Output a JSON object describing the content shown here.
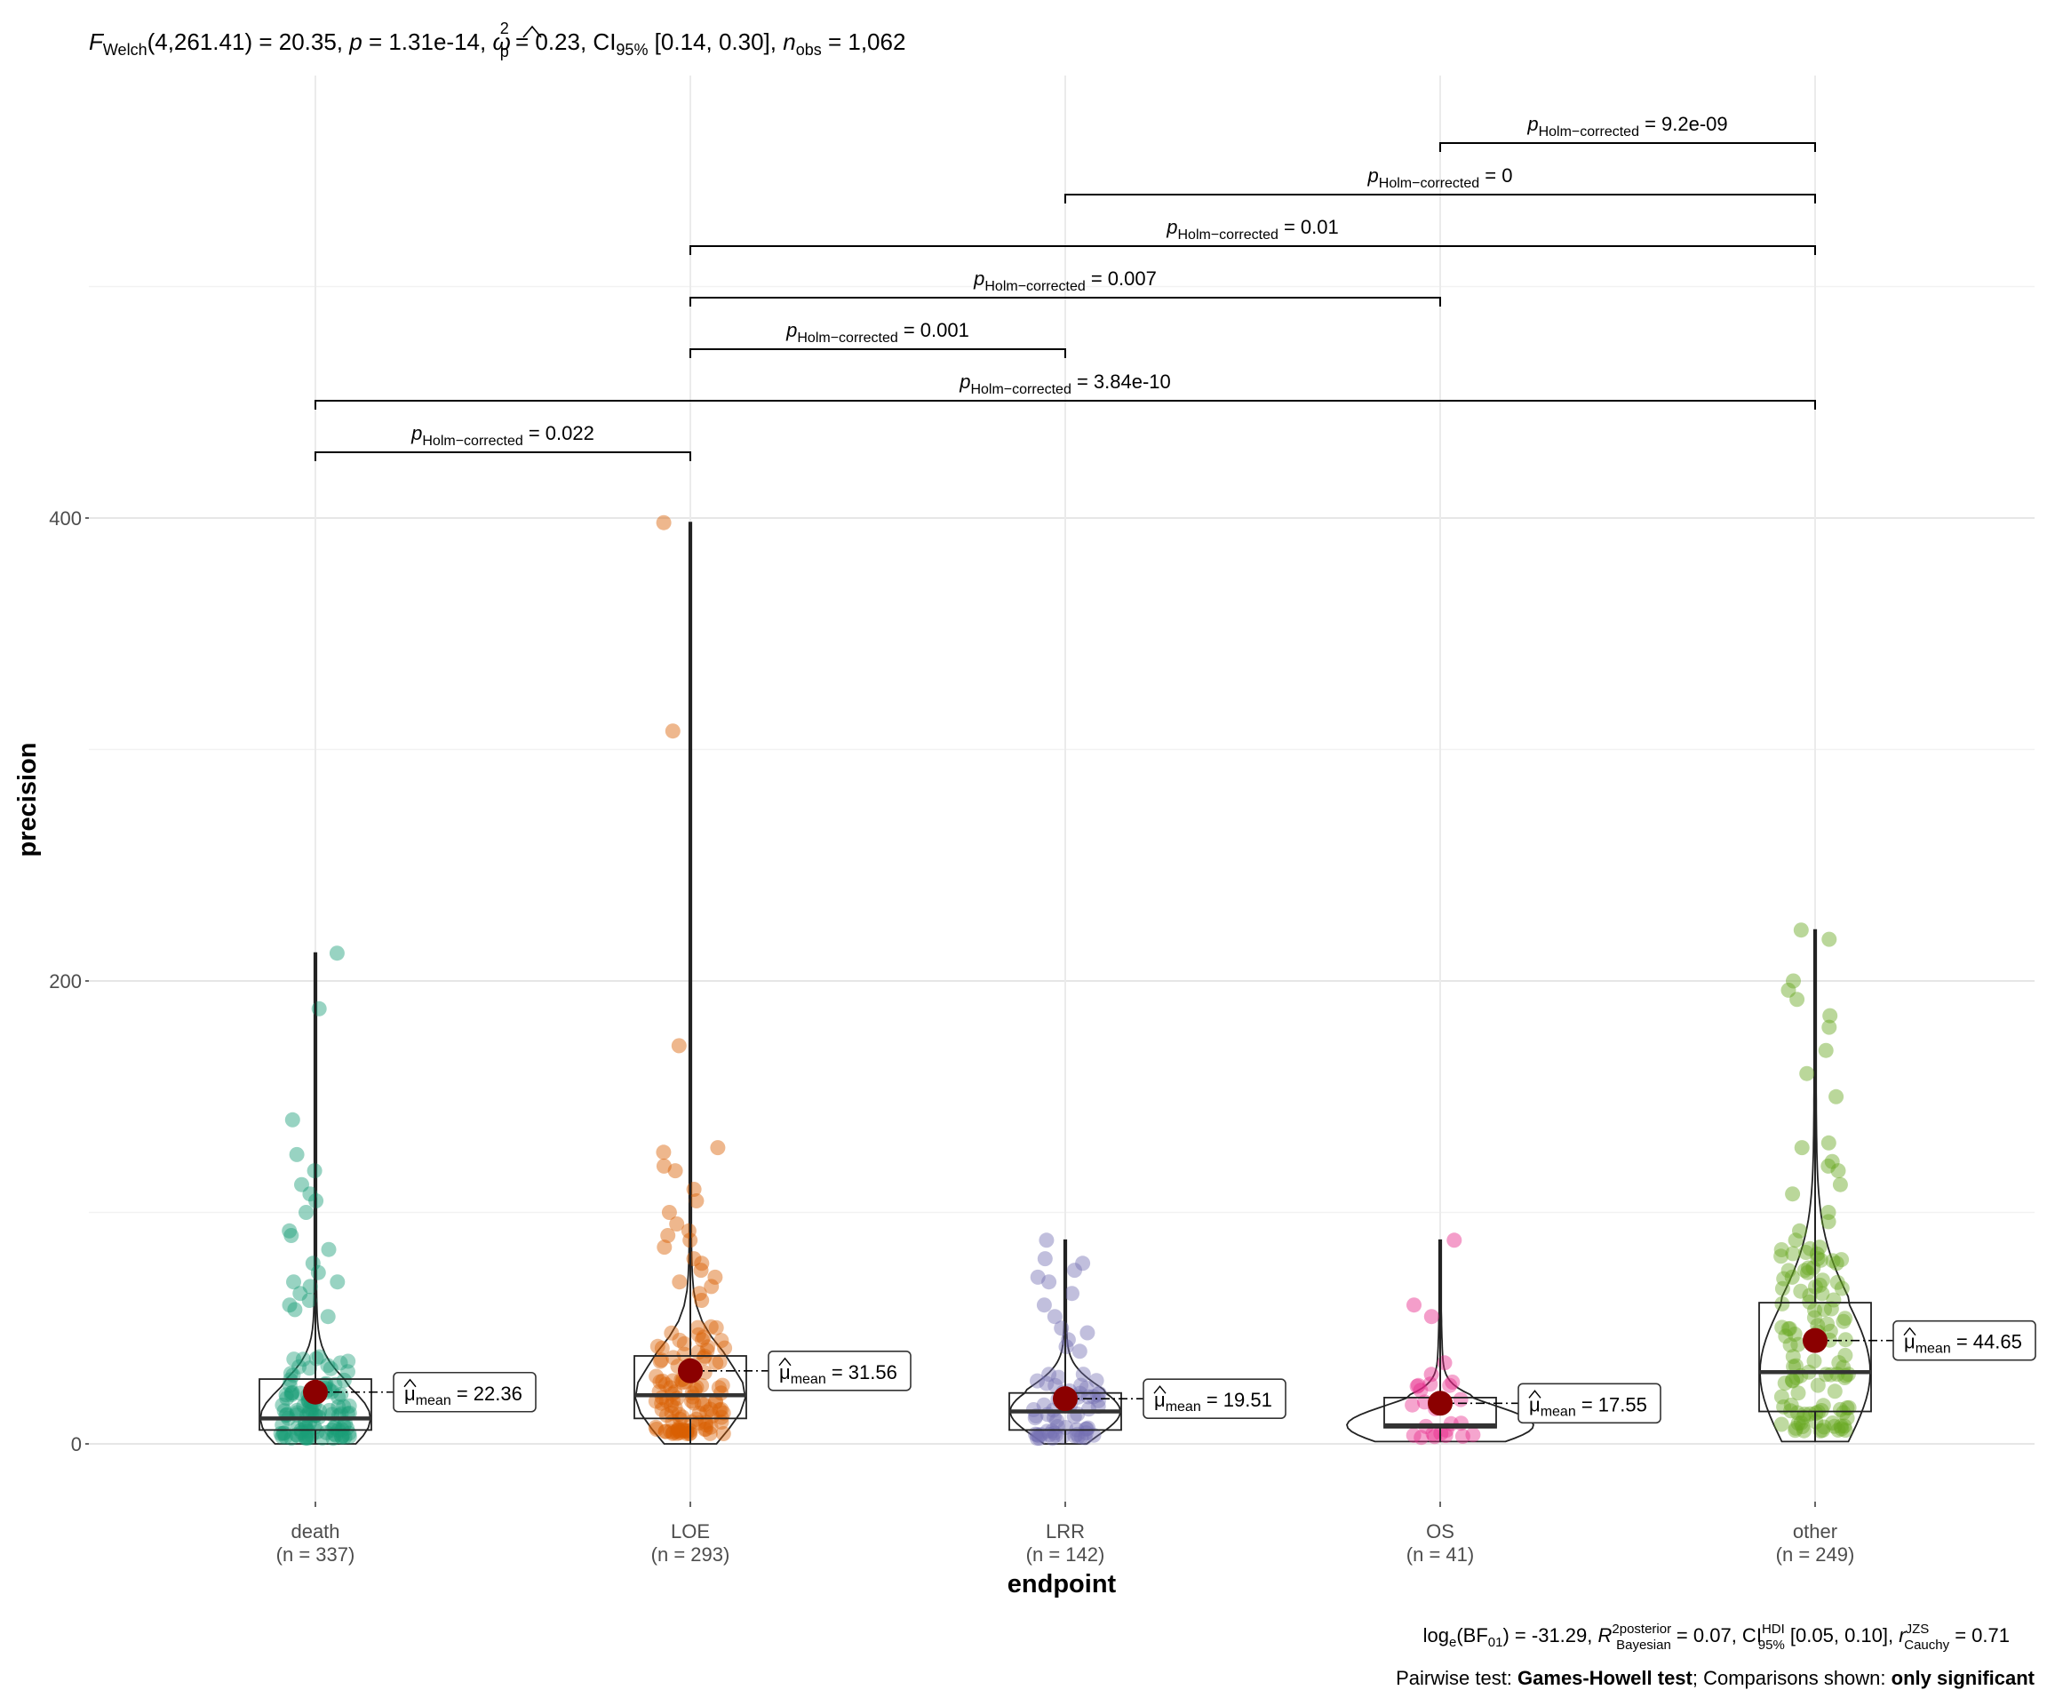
{
  "chart_data": {
    "type": "violin-box-scatter",
    "title": {
      "stat_name": "F",
      "stat_sub": "Welch",
      "df": "(4,261.41) = 20.35, ",
      "p_label": "p",
      "p_value": " = 1.31e-14, ",
      "omega_label": "ω",
      "omega_sub": "p",
      "omega_sup": "2",
      "omega_value": " = 0.23, CI",
      "ci_sub": "95%",
      "ci_value": " [0.14, 0.30], ",
      "n_label": "n",
      "n_sub": "obs",
      "n_value": " = 1,062"
    },
    "xlabel": "endpoint",
    "ylabel": "precision",
    "ylim": [
      -30,
      600
    ],
    "y_ticks": [
      0,
      200,
      400
    ],
    "y_tick_labels": [
      "0",
      "200",
      "400"
    ],
    "grid": true,
    "categories": [
      {
        "name": "death",
        "n_label": "(n = 337)",
        "color": "#1B9E77",
        "mean": 22.36,
        "mean_label": "22.36",
        "q1": 6,
        "median": 11,
        "q3": 28,
        "whisker_low": 0,
        "whisker_high": 212,
        "outliers": [
          212,
          188,
          140,
          125,
          118,
          112,
          108,
          105,
          100,
          92,
          90,
          84,
          78,
          74,
          70,
          70,
          68,
          65,
          62,
          60,
          58,
          55
        ]
      },
      {
        "name": "LOE",
        "n_label": "(n = 293)",
        "color": "#D95F02",
        "mean": 31.56,
        "mean_label": "31.56",
        "q1": 11,
        "median": 21,
        "q3": 38,
        "whisker_low": 0,
        "whisker_high": 398,
        "outliers": [
          398,
          308,
          172,
          128,
          126,
          120,
          118,
          110,
          105,
          100,
          95,
          92,
          90,
          88,
          85,
          80,
          78,
          75,
          72,
          70,
          68,
          65,
          62
        ]
      },
      {
        "name": "LRR",
        "n_label": "(n = 142)",
        "color": "#7570B3",
        "mean": 19.51,
        "mean_label": "19.51",
        "q1": 6,
        "median": 14,
        "q3": 22,
        "whisker_low": 0,
        "whisker_high": 88,
        "outliers": [
          88,
          80,
          78,
          75,
          72,
          70,
          65,
          60,
          55,
          50,
          48,
          45,
          42,
          40
        ]
      },
      {
        "name": "OS",
        "n_label": "(n = 41)",
        "color": "#E7298A",
        "mean": 17.55,
        "mean_label": "17.55",
        "q1": 7,
        "median": 8,
        "q3": 20,
        "whisker_low": 1,
        "whisker_high": 88,
        "outliers": [
          88,
          60,
          55,
          35,
          30
        ]
      },
      {
        "name": "other",
        "n_label": "(n = 249)",
        "color": "#66A61E",
        "mean": 44.65,
        "mean_label": "44.65",
        "q1": 14,
        "median": 31,
        "q3": 61,
        "whisker_low": 1,
        "whisker_high": 222,
        "outliers": [
          222,
          218,
          200,
          196,
          192,
          185,
          180,
          170,
          160,
          150,
          130,
          128,
          122,
          120,
          118,
          112,
          108,
          100,
          96,
          92,
          88,
          85,
          82,
          80,
          78,
          76,
          74,
          72
        ]
      }
    ],
    "mean_marker_prefix": "μ",
    "mean_marker_sub": "mean",
    "mean_marker_eq": " = ",
    "pairwise_label_p": "p",
    "pairwise_label_sub": "Holm−corrected",
    "pairwise": [
      {
        "from": "death",
        "to": "LOE",
        "value": "0.022"
      },
      {
        "from": "death",
        "to": "other",
        "value": "3.84e-10"
      },
      {
        "from": "LOE",
        "to": "LRR",
        "value": "0.001"
      },
      {
        "from": "LOE",
        "to": "OS",
        "value": "0.007"
      },
      {
        "from": "LOE",
        "to": "other",
        "value": "0.01"
      },
      {
        "from": "LRR",
        "to": "other",
        "value": "0"
      },
      {
        "from": "OS",
        "to": "other",
        "value": "9.2e-09"
      }
    ],
    "caption_bayes": {
      "a": "log",
      "a_sub": "e",
      "b": "(BF",
      "b_sub": "01",
      "c": ") = -31.29, ",
      "r_label": "R",
      "r_sup": "2",
      "r_sup2": "posterior",
      "r_sub": "Bayesian",
      "d": " = 0.07, CI",
      "ci_sup": "HDI",
      "ci_sub": "95%",
      "e": " [0.05, 0.10], ",
      "rc_label": "r",
      "rc_sup": "JZS",
      "rc_sub": "Cauchy",
      "f": " = 0.71"
    },
    "caption_pairwise": {
      "a": "Pairwise test: ",
      "b": "Games-Howell test",
      "c": "; Comparisons shown: ",
      "d": "only significant"
    }
  }
}
